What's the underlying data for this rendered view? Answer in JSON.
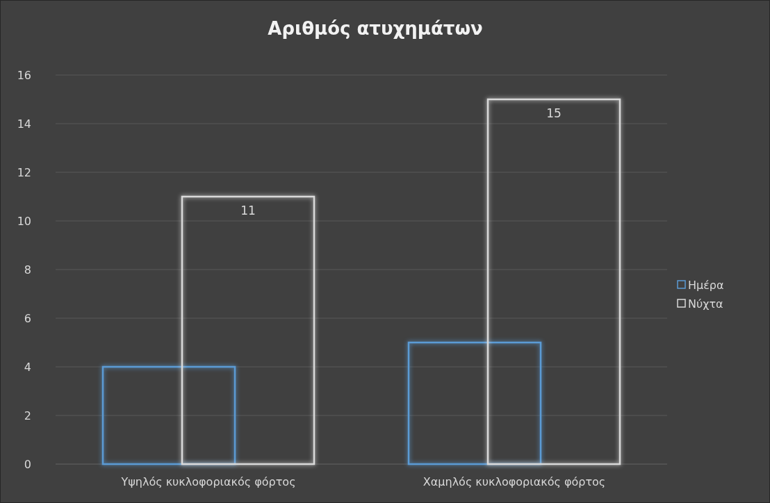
{
  "chart_data": {
    "type": "bar",
    "title": "Αριθμός ατυχημάτων",
    "categories": [
      "Υψηλός κυκλοφοριακός φόρτος",
      "Χαμηλός κυκλοφοριακός φόρτος"
    ],
    "series": [
      {
        "name": "Ημέρα",
        "color": "#5b9bd5",
        "values": [
          4,
          5
        ]
      },
      {
        "name": "Νύχτα",
        "color": "#d9d9d9",
        "values": [
          11,
          15
        ],
        "value_labels": [
          "11",
          "15"
        ]
      }
    ],
    "ylim": [
      0,
      16
    ],
    "yticks": [
      0,
      2,
      4,
      6,
      8,
      10,
      12,
      14,
      16
    ],
    "grid": "y",
    "legend": "right"
  }
}
